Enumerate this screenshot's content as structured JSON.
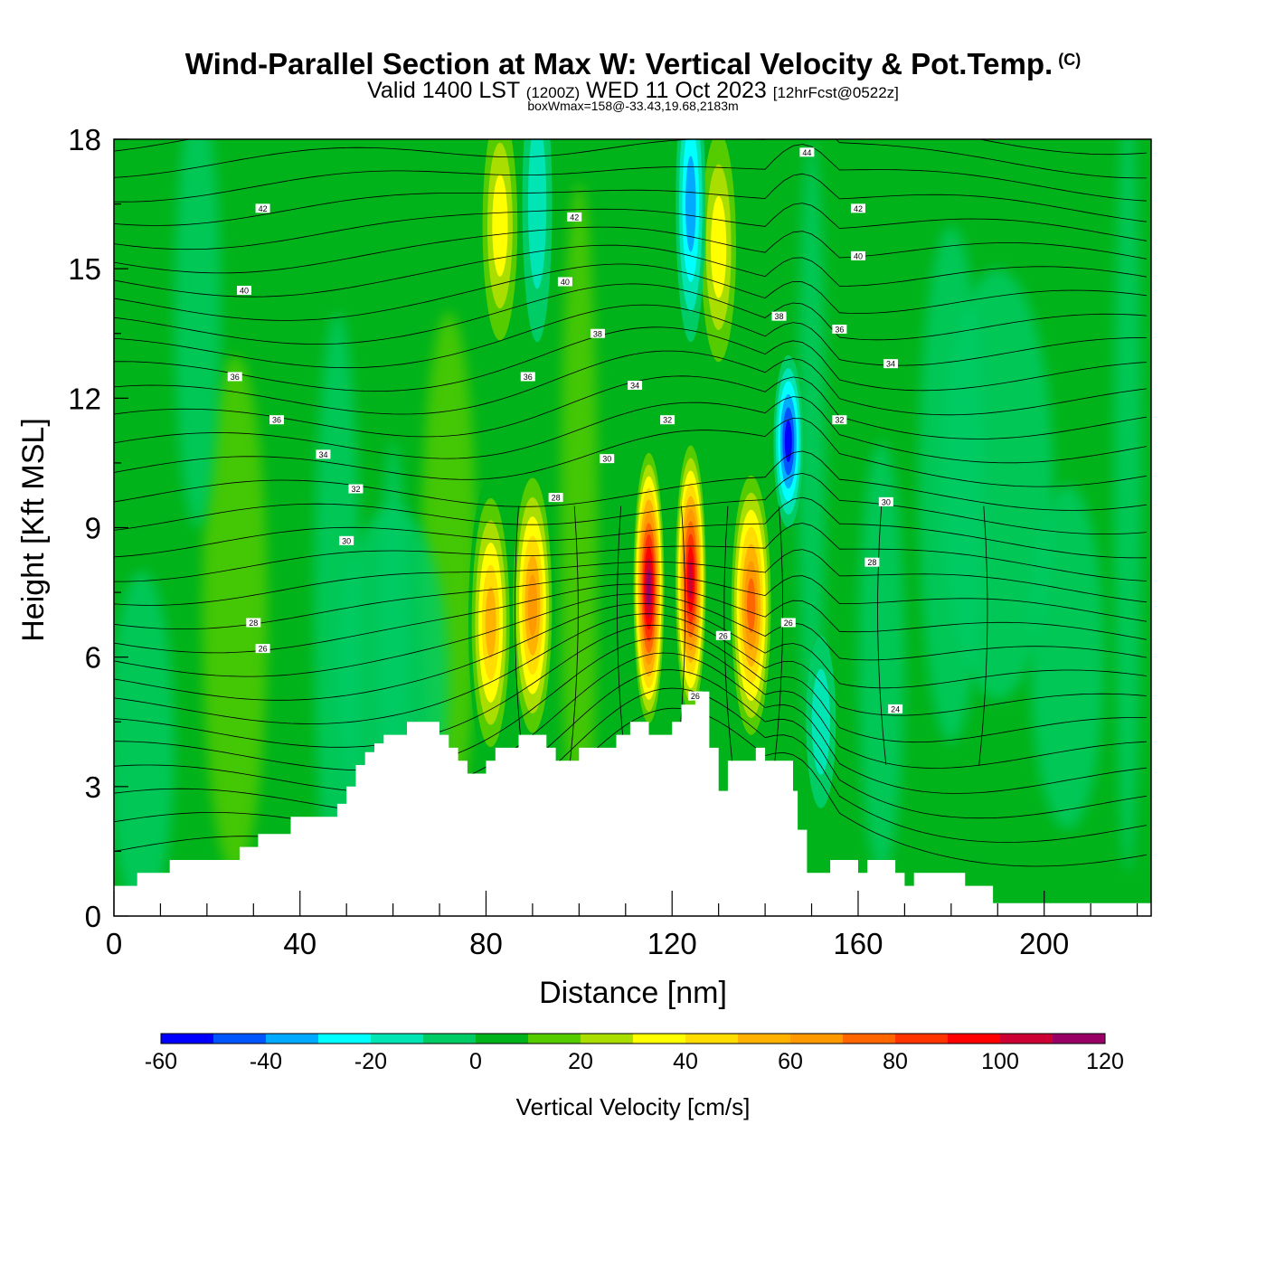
{
  "title": {
    "main": "Wind-Parallel Section at Max W: Vertical Velocity & Pot.Temp.",
    "mark": "(C)",
    "valid": "Valid 1400 LST",
    "utc": "(1200Z)",
    "date": "WED 11 Oct 2023",
    "fcst": "[12hrFcst@0522z]",
    "boxinfo": "boxWmax=158@-33.43,19.68,2183m"
  },
  "chart_data": {
    "type": "heatmap",
    "xlabel": "Distance [nm]",
    "ylabel": "Height [Kft MSL]",
    "xlim": [
      0,
      223
    ],
    "ylim": [
      0,
      18
    ],
    "x_ticks": [
      0,
      40,
      80,
      120,
      160,
      200
    ],
    "y_ticks": [
      0,
      3,
      6,
      9,
      12,
      15,
      18
    ],
    "colorbar": {
      "label": "Vertical Velocity [cm/s]",
      "levels": [
        -60,
        -50,
        -40,
        -30,
        -20,
        -10,
        0,
        10,
        20,
        30,
        40,
        50,
        60,
        70,
        80,
        90,
        100,
        110,
        120
      ],
      "tick_labels": [
        "-60",
        "-40",
        "-20",
        "0",
        "20",
        "40",
        "60",
        "80",
        "100",
        "120"
      ],
      "colors": [
        "#0000ff",
        "#0055ff",
        "#00aaff",
        "#00ffff",
        "#00e5b3",
        "#00cc66",
        "#00b31a",
        "#55cc00",
        "#aadd00",
        "#ffff00",
        "#ffdd00",
        "#ffb300",
        "#ff9900",
        "#ff6600",
        "#ff3300",
        "#ff0000",
        "#cc0033",
        "#990066"
      ]
    },
    "updrafts": [
      {
        "x": 81,
        "z": 6.8,
        "w": 60
      },
      {
        "x": 90,
        "z": 7.2,
        "w": 70
      },
      {
        "x": 115,
        "z": 7.6,
        "w": 120
      },
      {
        "x": 124,
        "z": 7.8,
        "w": 110
      },
      {
        "x": 137,
        "z": 7.2,
        "w": 80
      },
      {
        "x": 83,
        "z": 16.0,
        "w": 40
      },
      {
        "x": 130,
        "z": 15.5,
        "w": 40
      }
    ],
    "downdrafts": [
      {
        "x": 145,
        "z": 11.0,
        "w": -60
      },
      {
        "x": 91,
        "z": 16.5,
        "w": -20
      },
      {
        "x": 124,
        "z": 16.5,
        "w": -40
      },
      {
        "x": 152,
        "z": 4.5,
        "w": -20
      }
    ],
    "terrain": [
      [
        0,
        0.7
      ],
      [
        4,
        0.7
      ],
      [
        5,
        1.0
      ],
      [
        11,
        1.0
      ],
      [
        12,
        1.3
      ],
      [
        26,
        1.3
      ],
      [
        27,
        1.6
      ],
      [
        30,
        1.6
      ],
      [
        31,
        1.9
      ],
      [
        37,
        1.9
      ],
      [
        38,
        2.3
      ],
      [
        47,
        2.3
      ],
      [
        48,
        2.6
      ],
      [
        50,
        3.0
      ],
      [
        52,
        3.5
      ],
      [
        54,
        3.8
      ],
      [
        56,
        4.0
      ],
      [
        58,
        4.2
      ],
      [
        62,
        4.2
      ],
      [
        63,
        4.5
      ],
      [
        69,
        4.5
      ],
      [
        70,
        4.2
      ],
      [
        72,
        3.9
      ],
      [
        74,
        3.6
      ],
      [
        76,
        3.3
      ],
      [
        79,
        3.3
      ],
      [
        80,
        3.6
      ],
      [
        82,
        3.9
      ],
      [
        86,
        3.9
      ],
      [
        87,
        4.2
      ],
      [
        92,
        4.2
      ],
      [
        93,
        3.9
      ],
      [
        95,
        3.6
      ],
      [
        99,
        3.6
      ],
      [
        100,
        3.9
      ],
      [
        106,
        3.9
      ],
      [
        108,
        4.2
      ],
      [
        111,
        4.5
      ],
      [
        114,
        4.5
      ],
      [
        115,
        4.2
      ],
      [
        119,
        4.2
      ],
      [
        120,
        4.5
      ],
      [
        122,
        4.9
      ],
      [
        125,
        5.2
      ],
      [
        127,
        5.2
      ],
      [
        128,
        3.9
      ],
      [
        130,
        2.9
      ],
      [
        132,
        3.6
      ],
      [
        136,
        3.6
      ],
      [
        138,
        3.9
      ],
      [
        140,
        3.6
      ],
      [
        145,
        3.6
      ],
      [
        146,
        2.9
      ],
      [
        147,
        2.0
      ],
      [
        149,
        1.0
      ],
      [
        153,
        1.0
      ],
      [
        154,
        1.3
      ],
      [
        159,
        1.3
      ],
      [
        160,
        1.0
      ],
      [
        162,
        1.3
      ],
      [
        167,
        1.3
      ],
      [
        168,
        1.0
      ],
      [
        170,
        0.7
      ],
      [
        172,
        1.0
      ],
      [
        182,
        1.0
      ],
      [
        183,
        0.7
      ],
      [
        188,
        0.7
      ],
      [
        189,
        0.3
      ],
      [
        223,
        0.3
      ]
    ],
    "theta_labels": [
      {
        "text": "42",
        "x": 32,
        "z": 16.4
      },
      {
        "text": "40",
        "x": 28,
        "z": 14.5
      },
      {
        "text": "36",
        "x": 26,
        "z": 12.5
      },
      {
        "text": "36",
        "x": 35,
        "z": 11.5
      },
      {
        "text": "34",
        "x": 45,
        "z": 10.7
      },
      {
        "text": "32",
        "x": 52,
        "z": 9.9
      },
      {
        "text": "30",
        "x": 50,
        "z": 8.7
      },
      {
        "text": "28",
        "x": 30,
        "z": 6.8
      },
      {
        "text": "26",
        "x": 32,
        "z": 6.2
      },
      {
        "text": "42",
        "x": 99,
        "z": 16.2
      },
      {
        "text": "40",
        "x": 97,
        "z": 14.7
      },
      {
        "text": "38",
        "x": 104,
        "z": 13.5
      },
      {
        "text": "36",
        "x": 89,
        "z": 12.5
      },
      {
        "text": "34",
        "x": 112,
        "z": 12.3
      },
      {
        "text": "32",
        "x": 119,
        "z": 11.5
      },
      {
        "text": "30",
        "x": 106,
        "z": 10.6
      },
      {
        "text": "28",
        "x": 95,
        "z": 9.7
      },
      {
        "text": "26",
        "x": 131,
        "z": 6.5
      },
      {
        "text": "26",
        "x": 125,
        "z": 5.1
      },
      {
        "text": "26",
        "x": 145,
        "z": 6.8
      },
      {
        "text": "44",
        "x": 149,
        "z": 17.7
      },
      {
        "text": "42",
        "x": 160,
        "z": 16.4
      },
      {
        "text": "40",
        "x": 160,
        "z": 15.3
      },
      {
        "text": "38",
        "x": 143,
        "z": 13.9
      },
      {
        "text": "36",
        "x": 156,
        "z": 13.6
      },
      {
        "text": "34",
        "x": 167,
        "z": 12.8
      },
      {
        "text": "32",
        "x": 156,
        "z": 11.5
      },
      {
        "text": "30",
        "x": 166,
        "z": 9.6
      },
      {
        "text": "28",
        "x": 163,
        "z": 8.2
      },
      {
        "text": "24",
        "x": 168,
        "z": 4.8
      }
    ]
  }
}
